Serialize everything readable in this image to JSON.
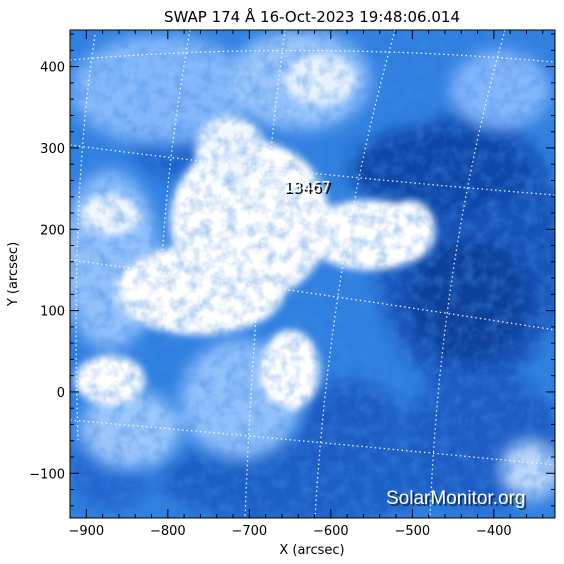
{
  "title": "SWAP 174 Å 16-Oct-2023 19:48:06.014",
  "region_label": "13467",
  "watermark": "SolarMonitor.org",
  "colors": {
    "background": "#ffffff",
    "frame": "#000000",
    "dark_blue": "#0a3f9c",
    "mid_blue": "#2f7fe0",
    "light_blue": "#9cc8ff",
    "bright": "#ffffff"
  },
  "chart_data": {
    "type": "heatmap",
    "title": "SWAP 174 Å 16-Oct-2023 19:48:06.014",
    "xlabel": "X (arcsec)",
    "ylabel": "Y (arcsec)",
    "xlim": [
      -920,
      -325
    ],
    "ylim": [
      -155,
      445
    ],
    "x_ticks": [
      -900,
      -800,
      -700,
      -600,
      -500,
      -400
    ],
    "y_ticks": [
      -100,
      0,
      100,
      200,
      300,
      400
    ],
    "grid": "heliographic dotted lines",
    "annotations": [
      {
        "text": "13467",
        "x": -615,
        "y": 250
      }
    ]
  }
}
